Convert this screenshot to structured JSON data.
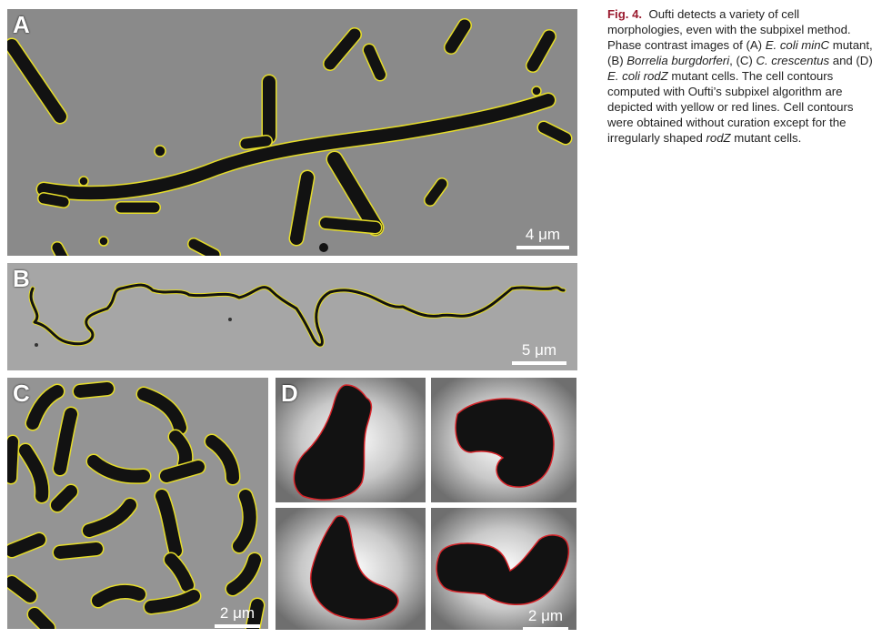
{
  "figure": {
    "label": "Fig. 4.",
    "caption_parts": [
      {
        "text": "Oufti detects a variety of cell morphologies, even with the subpixel method. Phase contrast images of (A) ",
        "italic": false
      },
      {
        "text": "E. coli minC",
        "italic": true
      },
      {
        "text": " mutant, (B) ",
        "italic": false
      },
      {
        "text": "Borrelia burgdorferi",
        "italic": true
      },
      {
        "text": ", (C) ",
        "italic": false
      },
      {
        "text": "C. crescentus",
        "italic": true
      },
      {
        "text": " and (D) ",
        "italic": false
      },
      {
        "text": "E. coli rodZ",
        "italic": true
      },
      {
        "text": " mutant cells. The cell contours computed with Oufti’s subpixel algorithm are depicted with yellow or red lines. Cell contours were obtained without curation except for the irregularly shaped ",
        "italic": false
      },
      {
        "text": "rodZ",
        "italic": true
      },
      {
        "text": " mutant cells.",
        "italic": false
      }
    ]
  },
  "panels": {
    "A": {
      "label": "A",
      "scale": "4 μm"
    },
    "B": {
      "label": "B",
      "scale": "5 μm"
    },
    "C": {
      "label": "C",
      "scale": "2 μm"
    },
    "D": {
      "label": "D",
      "scale": "2 μm"
    }
  },
  "colors": {
    "contour_yellow": "#e6dd2a",
    "contour_red": "#d8252a",
    "cell": "#121212",
    "background": "#8e8e8e",
    "caption_label": "#9a1b2f"
  }
}
